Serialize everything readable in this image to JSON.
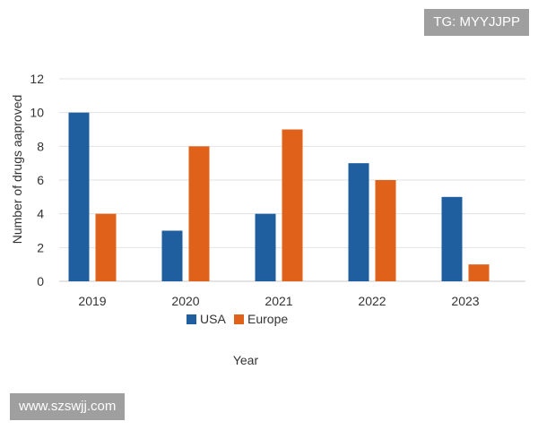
{
  "chart_data": {
    "type": "bar",
    "title": "",
    "xlabel": "Year",
    "ylabel": "Number of drugs aaproved",
    "categories": [
      "2019",
      "2020",
      "2021",
      "2022",
      "2023"
    ],
    "series": [
      {
        "name": "USA",
        "color": "#1f5fa0",
        "values": [
          10,
          3,
          4,
          7,
          5
        ]
      },
      {
        "name": "Europe",
        "color": "#e0611a",
        "values": [
          4,
          8,
          9,
          6,
          1
        ]
      }
    ],
    "ylim": [
      0,
      12
    ],
    "yticks": [
      "0",
      "2",
      "4",
      "6",
      "8",
      "10",
      "12"
    ],
    "grid": true,
    "legend": "bottom-center"
  },
  "watermarks": {
    "top": "TG: MYYJJPP",
    "bottom": "www.szswjj.com"
  }
}
